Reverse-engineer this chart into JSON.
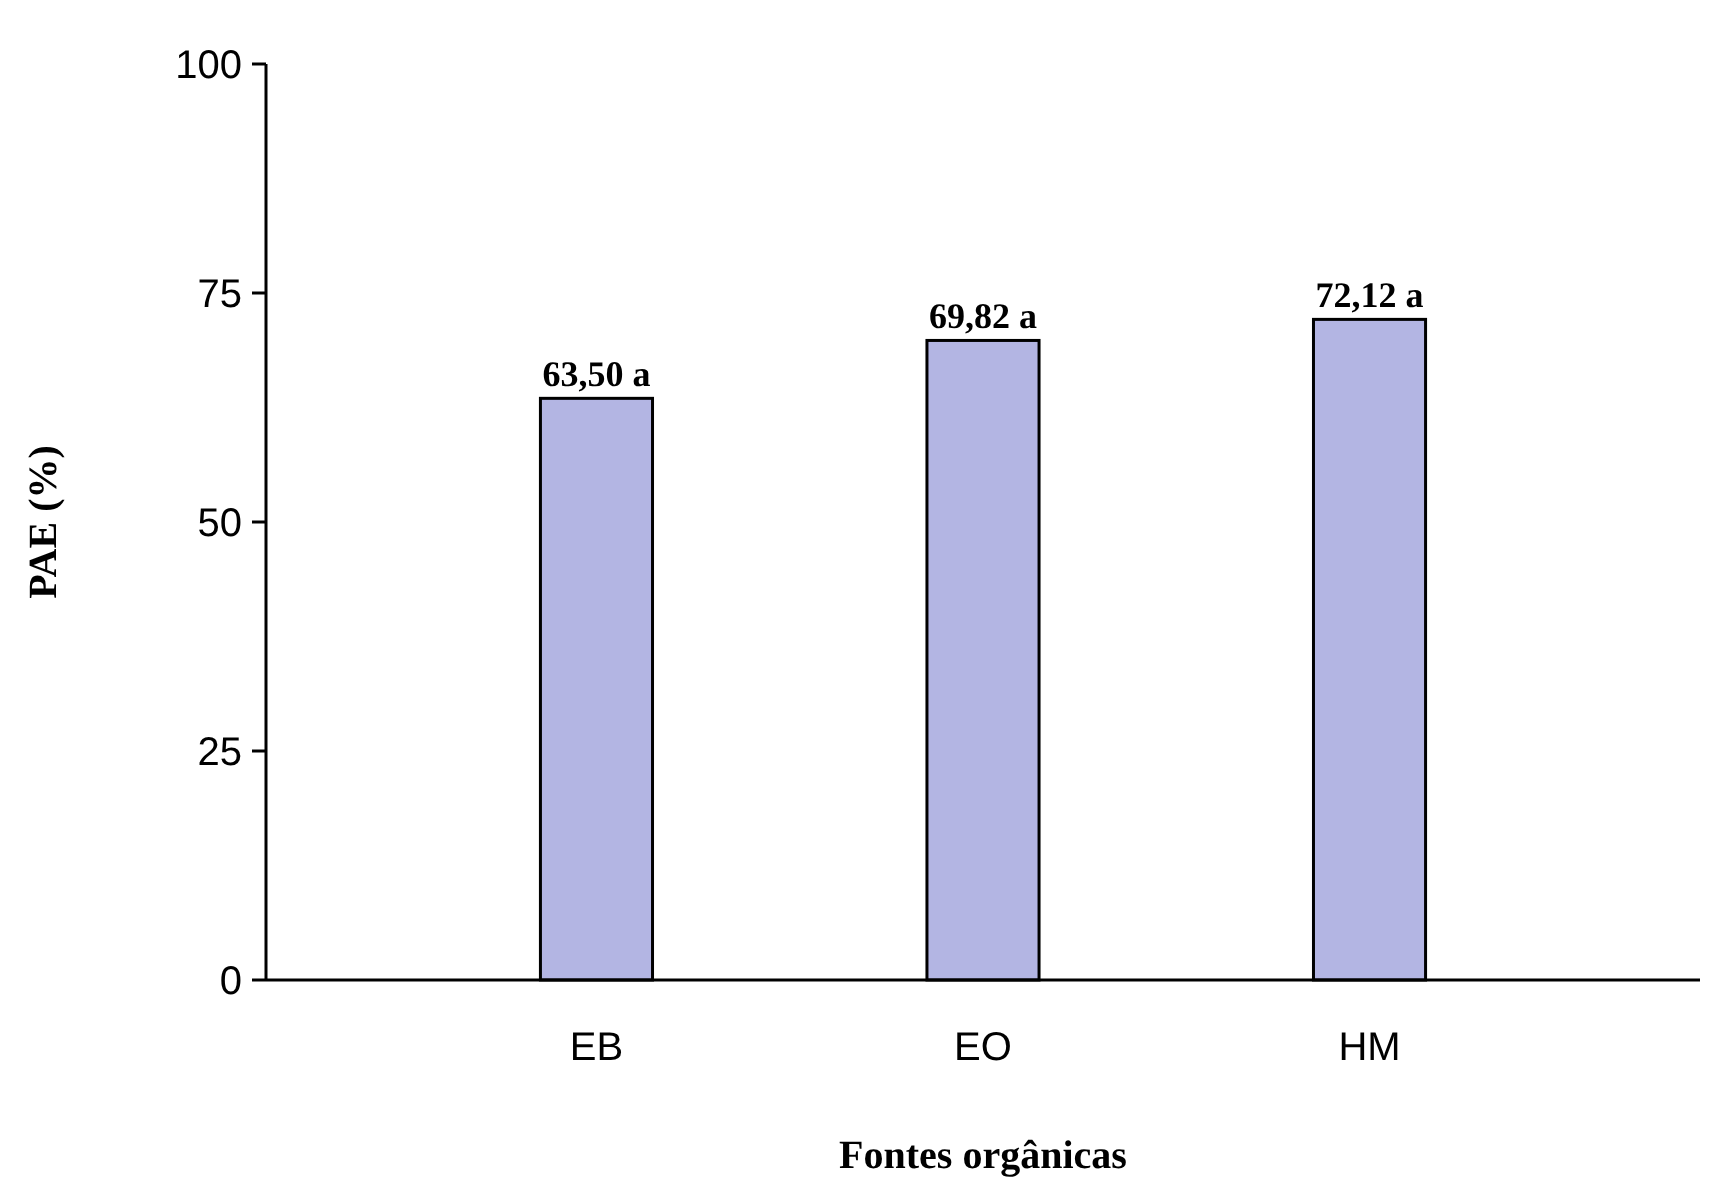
{
  "chart_data": {
    "type": "bar",
    "xlabel": "Fontes orgânicas",
    "ylabel": "PAE (%)",
    "categories": [
      "EB",
      "EO",
      "HM"
    ],
    "values": [
      63.5,
      69.82,
      72.12
    ],
    "value_labels": [
      "63,50 a",
      "69,82 a",
      "72,12 a"
    ],
    "color": "#b3b5e3",
    "ylim": [
      0,
      100
    ],
    "yticks": [
      0,
      25,
      50,
      75,
      100
    ],
    "grid": false
  }
}
